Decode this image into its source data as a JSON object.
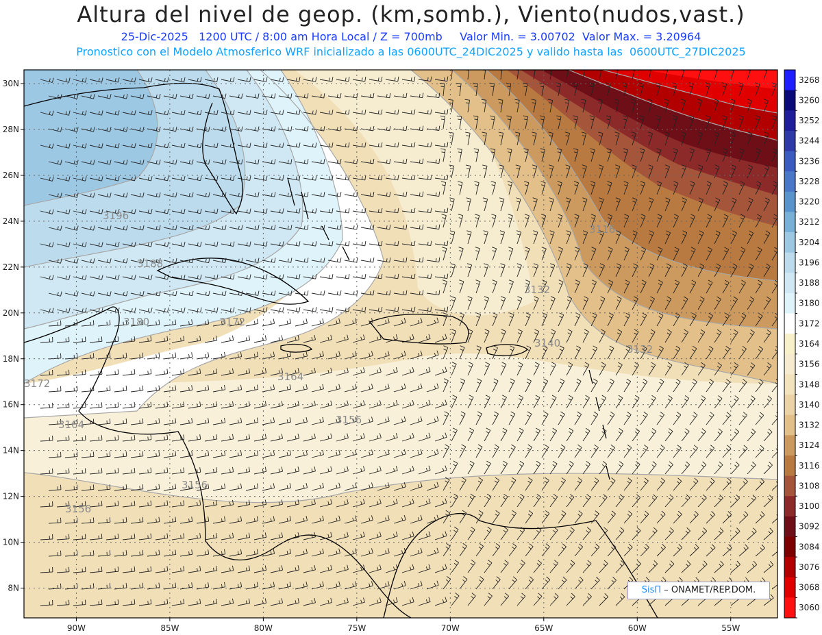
{
  "header": {
    "title": "Altura del nivel de geop. (km,somb.), Viento(nudos,vast.)",
    "line1": "25-Dic-2025   1200 UTC / 8:00 am Hora Local / Z = 700mb     Valor Min. = 3.00702  Valor Max. = 3.20964",
    "line2": "Pronostico con el Modelo Atmosferico WRF inicializado a las 0600UTC_24DIC2025 y valido hasta las  0600UTC_27DIC2025"
  },
  "map": {
    "lon_range": [
      -92.8,
      -52.5
    ],
    "lat_range": [
      6.7,
      30.6
    ],
    "lat_ticks": [
      "30N",
      "28N",
      "26N",
      "24N",
      "22N",
      "20N",
      "18N",
      "16N",
      "14N",
      "12N",
      "10N",
      "8N"
    ],
    "lon_ticks": [
      "90W",
      "85W",
      "80W",
      "75W",
      "70W",
      "65W",
      "60W",
      "55W"
    ],
    "contour_labels": [
      "3196",
      "3188",
      "3180",
      "3172",
      "3172",
      "3164",
      "3164",
      "3156",
      "3156",
      "3156",
      "3132",
      "3140",
      "3132",
      "3116"
    ]
  },
  "colorbar": {
    "levels": [
      "3268",
      "3260",
      "3252",
      "3244",
      "3236",
      "3228",
      "3220",
      "3212",
      "3204",
      "3196",
      "3188",
      "3180",
      "3172",
      "3164",
      "3156",
      "3148",
      "3140",
      "3132",
      "3124",
      "3116",
      "3108",
      "3100",
      "3092",
      "3084",
      "3076",
      "3068",
      "3060"
    ],
    "colors": [
      "#1e1eff",
      "#0a0a78",
      "#1e1e9a",
      "#2d3aa8",
      "#3a5cc0",
      "#4a78c8",
      "#5a94cc",
      "#78b0d8",
      "#9cc8e4",
      "#bcdcee",
      "#cfe8f4",
      "#dff3fa",
      "#ffffff",
      "#f8f0c8",
      "#f6ebce",
      "#f3e3bd",
      "#ecd3a6",
      "#e3c08a",
      "#cc9a5e",
      "#b87a40",
      "#a5553a",
      "#8c2a2a",
      "#6e0f17",
      "#7c0000",
      "#b20000",
      "#e00000",
      "#ff1010"
    ]
  },
  "footer": {
    "brand": "SisΠ",
    "credit": "– ONAMET/REP.DOM."
  }
}
